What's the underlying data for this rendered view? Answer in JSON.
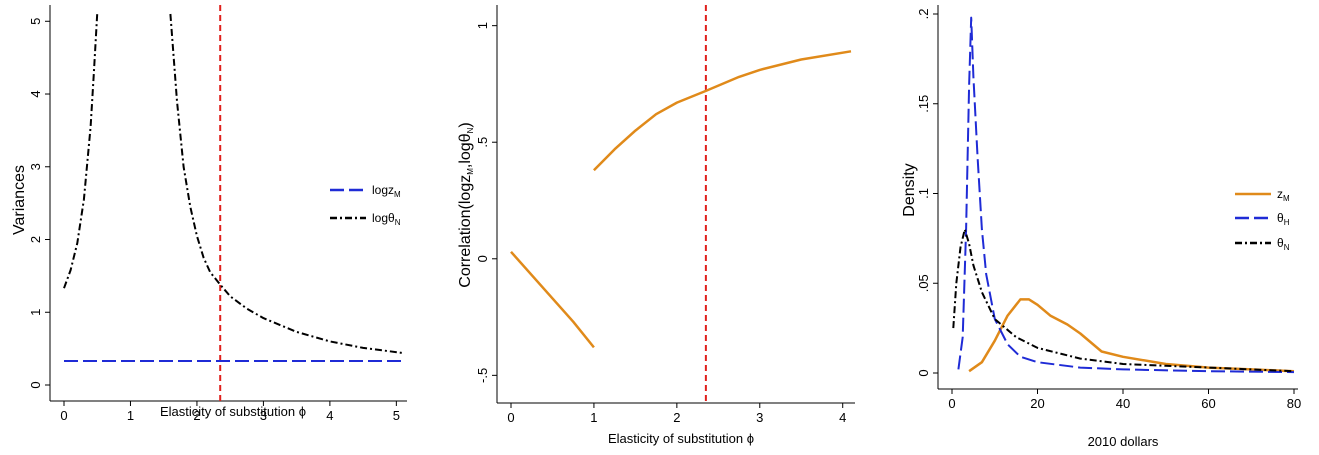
{
  "chart_data": [
    {
      "type": "line",
      "ylabel": "Variances",
      "xlabel": "Elasticity of substitution ϕ",
      "xlim": [
        0,
        5.1
      ],
      "ylim": [
        0,
        5.1
      ],
      "x_ticks": [
        "0",
        "1",
        "2",
        "3",
        "4",
        "5"
      ],
      "y_ticks": [
        "0",
        "1",
        "2",
        "3",
        "4",
        "5"
      ],
      "legend_position": "right",
      "reference_line": {
        "x": 2.35,
        "color": "#e0201c",
        "style": "dashed"
      },
      "series": [
        {
          "name": "logz_M",
          "legend_main": "logz",
          "legend_sub": "M",
          "color": "#1f2bd6",
          "style": "long-dash",
          "points": [
            [
              0,
              0.33
            ],
            [
              5.1,
              0.33
            ]
          ]
        },
        {
          "name": "logθ_N",
          "legend_main": "logθ",
          "legend_sub": "N",
          "color": "#000000",
          "style": "dash-dot",
          "points": [
            [
              0.0,
              1.33
            ],
            [
              0.1,
              1.58
            ],
            [
              0.2,
              1.95
            ],
            [
              0.3,
              2.55
            ],
            [
              0.4,
              3.55
            ],
            [
              0.45,
              4.3
            ],
            [
              0.5,
              5.1
            ]
          ],
          "points_b": [
            [
              1.6,
              5.1
            ],
            [
              1.7,
              3.9
            ],
            [
              1.8,
              3.0
            ],
            [
              1.9,
              2.45
            ],
            [
              2.0,
              2.05
            ],
            [
              2.1,
              1.75
            ],
            [
              2.2,
              1.55
            ],
            [
              2.35,
              1.38
            ],
            [
              2.5,
              1.22
            ],
            [
              2.75,
              1.05
            ],
            [
              3.0,
              0.92
            ],
            [
              3.5,
              0.73
            ],
            [
              4.0,
              0.6
            ],
            [
              4.5,
              0.51
            ],
            [
              5.1,
              0.44
            ]
          ]
        }
      ]
    },
    {
      "type": "line",
      "ylabel": "Correlation(logz_M,logθ_N)",
      "ylabel_parts": {
        "a": "Correlation(logz",
        "a_sub": "M",
        "b": ",logθ",
        "b_sub": "N",
        "c": ")"
      },
      "xlabel": "Elasticity of substitution ϕ",
      "xlim": [
        0,
        4.1
      ],
      "ylim": [
        -0.55,
        1.05
      ],
      "x_ticks": [
        "0",
        "1",
        "2",
        "3",
        "4"
      ],
      "y_ticks": [
        "-.5",
        "0",
        ".5",
        "1"
      ],
      "y_tick_values": [
        -0.5,
        0,
        0.5,
        1
      ],
      "reference_line": {
        "x": 2.35,
        "color": "#e0201c",
        "style": "dashed"
      },
      "series": [
        {
          "color": "#e08a1a",
          "style": "solid",
          "points": [
            [
              0,
              0.03
            ],
            [
              0.25,
              -0.07
            ],
            [
              0.5,
              -0.17
            ],
            [
              0.75,
              -0.27
            ],
            [
              1.0,
              -0.38
            ]
          ],
          "points_b": [
            [
              1.0,
              0.38
            ],
            [
              1.25,
              0.47
            ],
            [
              1.5,
              0.55
            ],
            [
              1.75,
              0.62
            ],
            [
              2.0,
              0.67
            ],
            [
              2.35,
              0.72
            ],
            [
              2.75,
              0.78
            ],
            [
              3.0,
              0.81
            ],
            [
              3.5,
              0.855
            ],
            [
              4.1,
              0.89
            ]
          ]
        }
      ]
    },
    {
      "type": "line",
      "ylabel": "Density",
      "xlabel": "2010 dollars",
      "xlim": [
        0,
        80
      ],
      "ylim": [
        0,
        0.2
      ],
      "x_ticks": [
        "0",
        "20",
        "40",
        "60",
        "80"
      ],
      "x_tick_values": [
        0,
        20,
        40,
        60,
        80
      ],
      "y_ticks": [
        "0",
        ".05",
        ".1",
        ".15",
        ".2"
      ],
      "y_tick_values": [
        0,
        0.05,
        0.1,
        0.15,
        0.2
      ],
      "legend_position": "right",
      "series": [
        {
          "name": "z_M",
          "legend_main": "z",
          "legend_sub": "M",
          "color": "#e08a1a",
          "style": "solid",
          "points": [
            [
              4,
              0.001
            ],
            [
              7,
              0.006
            ],
            [
              10,
              0.018
            ],
            [
              13,
              0.032
            ],
            [
              16,
              0.041
            ],
            [
              18,
              0.041
            ],
            [
              20,
              0.038
            ],
            [
              23,
              0.032
            ],
            [
              27,
              0.027
            ],
            [
              30,
              0.022
            ],
            [
              35,
              0.012
            ],
            [
              40,
              0.009
            ],
            [
              50,
              0.005
            ],
            [
              60,
              0.003
            ],
            [
              70,
              0.002
            ],
            [
              80,
              0.001
            ]
          ]
        },
        {
          "name": "θ_H",
          "legend_main": "θ",
          "legend_sub": "H",
          "color": "#1f2bd6",
          "style": "long-dash",
          "points": [
            [
              1.5,
              0.002
            ],
            [
              2.5,
              0.02
            ],
            [
              3.3,
              0.08
            ],
            [
              4.0,
              0.16
            ],
            [
              4.5,
              0.198
            ],
            [
              5,
              0.165
            ],
            [
              6,
              0.12
            ],
            [
              7,
              0.08
            ],
            [
              8,
              0.055
            ],
            [
              10,
              0.03
            ],
            [
              13,
              0.016
            ],
            [
              16,
              0.009
            ],
            [
              20,
              0.006
            ],
            [
              30,
              0.003
            ],
            [
              40,
              0.002
            ],
            [
              60,
              0.001
            ],
            [
              80,
              0.0005
            ]
          ]
        },
        {
          "name": "θ_N",
          "legend_main": "θ",
          "legend_sub": "N",
          "color": "#000000",
          "style": "dash-dot",
          "points": [
            [
              0.3,
              0.025
            ],
            [
              1,
              0.05
            ],
            [
              2,
              0.07
            ],
            [
              3,
              0.08
            ],
            [
              4,
              0.072
            ],
            [
              5,
              0.06
            ],
            [
              7,
              0.045
            ],
            [
              10,
              0.03
            ],
            [
              15,
              0.02
            ],
            [
              20,
              0.014
            ],
            [
              30,
              0.008
            ],
            [
              40,
              0.005
            ],
            [
              50,
              0.004
            ],
            [
              60,
              0.003
            ],
            [
              80,
              0.001
            ]
          ]
        }
      ]
    }
  ]
}
